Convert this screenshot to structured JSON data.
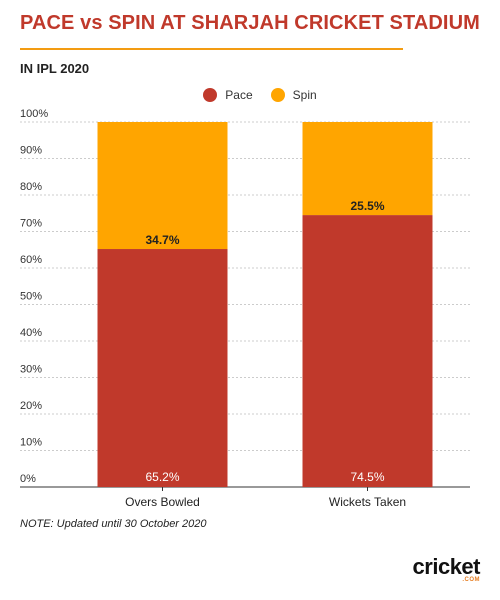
{
  "title": "PACE vs SPIN AT SHARJAH CRICKET STADIUM",
  "subtitle": "IN IPL 2020",
  "note": "NOTE: Updated until 30 October 2020",
  "logo": {
    "main": "cricket",
    "suffix": ".COM"
  },
  "colors": {
    "pace": "#c0392b",
    "spin": "#ffa500",
    "title": "#c0392b",
    "rule": "#f39c12"
  },
  "chart_data": {
    "type": "bar",
    "stacked": true,
    "percent": true,
    "categories": [
      "Overs Bowled",
      "Wickets Taken"
    ],
    "series": [
      {
        "name": "Pace",
        "values": [
          65.2,
          74.5
        ],
        "labels": [
          "65.2%",
          "74.5%"
        ]
      },
      {
        "name": "Spin",
        "values": [
          34.7,
          25.5
        ],
        "labels": [
          "34.7%",
          "25.5%"
        ]
      }
    ],
    "yticks": [
      "0%",
      "10%",
      "20%",
      "30%",
      "40%",
      "50%",
      "60%",
      "70%",
      "80%",
      "90%",
      "100%"
    ],
    "ylim": [
      0,
      100
    ],
    "grid": true,
    "legend_position": "top-center"
  }
}
